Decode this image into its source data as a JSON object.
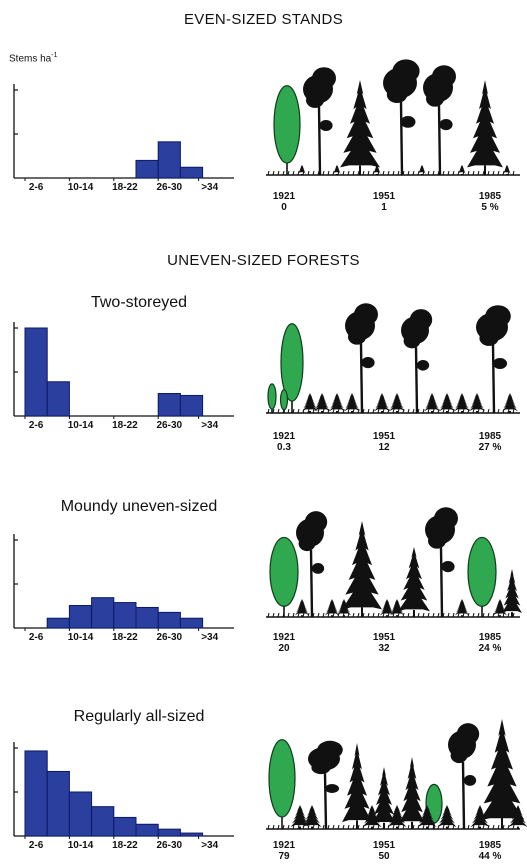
{
  "header_even": "EVEN-SIZED STANDS",
  "header_uneven": "UNEVEN-SIZED FORESTS",
  "ylabel_text": "Stems ha",
  "ylabel_exp": "-1",
  "colors": {
    "bar": "#2b3f9e",
    "tree_dark": "#111111",
    "tree_green": "#2fa84f"
  },
  "chart_data": [
    {
      "type": "bar",
      "title": "",
      "categories": [
        "2-6",
        "6-10",
        "10-14",
        "14-18",
        "18-22",
        "22-26",
        "26-30",
        "30-34",
        ">34"
      ],
      "tick_labels": [
        "2-6",
        "10-14",
        "18-22",
        "26-30",
        ">34"
      ],
      "values": [
        0,
        0,
        0,
        0,
        0,
        0.9,
        1.85,
        0.55,
        0
      ],
      "ylim": [
        0,
        4.5
      ]
    },
    {
      "type": "bar",
      "title": "Two-storeyed",
      "categories": [
        "2-6",
        "6-10",
        "10-14",
        "14-18",
        "18-22",
        "22-26",
        "26-30",
        "30-34",
        ">34"
      ],
      "tick_labels": [
        "2-6",
        "10-14",
        "18-22",
        "26-30",
        ">34"
      ],
      "values": [
        4.5,
        1.75,
        0,
        0,
        0,
        0,
        1.15,
        1.05,
        0
      ],
      "ylim": [
        0,
        4.5
      ]
    },
    {
      "type": "bar",
      "title": "Moundy uneven-sized",
      "categories": [
        "2-6",
        "6-10",
        "10-14",
        "14-18",
        "18-22",
        "22-26",
        "26-30",
        "30-34",
        ">34"
      ],
      "tick_labels": [
        "2-6",
        "10-14",
        "18-22",
        "26-30",
        ">34"
      ],
      "values": [
        0,
        0.5,
        1.15,
        1.55,
        1.3,
        1.05,
        0.8,
        0.5,
        0
      ],
      "ylim": [
        0,
        4.5
      ]
    },
    {
      "type": "bar",
      "title": "Regularly all-sized",
      "categories": [
        "2-6",
        "6-10",
        "10-14",
        "14-18",
        "18-22",
        "22-26",
        "26-30",
        "30-34",
        ">34"
      ],
      "tick_labels": [
        "2-6",
        "10-14",
        "18-22",
        "26-30",
        ">34"
      ],
      "values": [
        4.35,
        3.3,
        2.25,
        1.5,
        0.95,
        0.6,
        0.35,
        0.15,
        0
      ],
      "ylim": [
        0,
        4.5
      ]
    }
  ],
  "scenes": [
    {
      "years": [
        "1921",
        "1951",
        "1985"
      ],
      "pcts": [
        "0",
        "1",
        "5 %"
      ]
    },
    {
      "years": [
        "1921",
        "1951",
        "1985"
      ],
      "pcts": [
        "0.3",
        "12",
        "27 %"
      ]
    },
    {
      "years": [
        "1921",
        "1951",
        "1985"
      ],
      "pcts": [
        "20",
        "32",
        "24 %"
      ]
    },
    {
      "years": [
        "1921",
        "1951",
        "1985"
      ],
      "pcts": [
        "79",
        "50",
        "44 %"
      ]
    }
  ]
}
